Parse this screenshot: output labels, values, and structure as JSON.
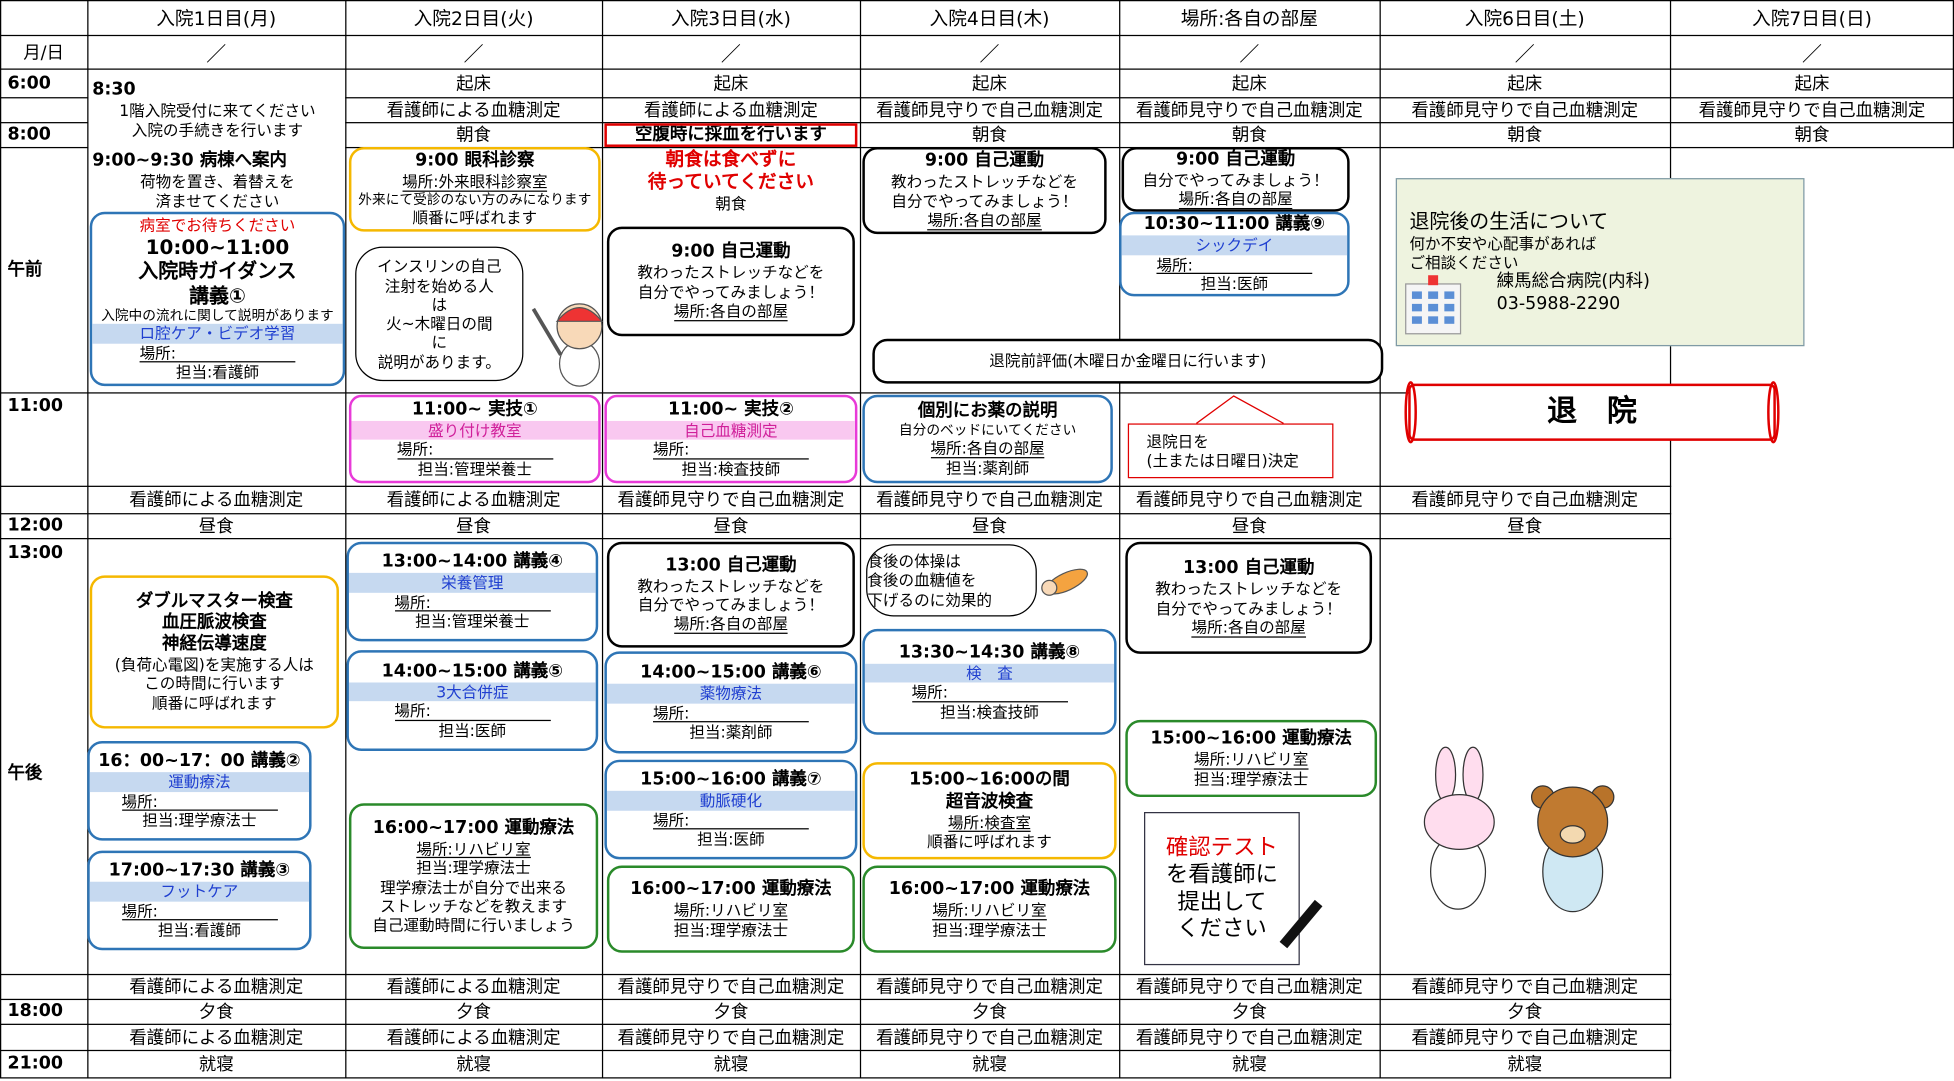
{
  "header": {
    "days": [
      "入院1日目(月)",
      "入院2日目(火)",
      "入院3日目(水)",
      "入院4日目(木)",
      "場所:各自の部屋",
      "入院6日目(土)",
      "入院7日目(日)"
    ]
  },
  "date_row": {
    "label": "月/日",
    "marks": [
      "／",
      "／",
      "／",
      "／",
      "／",
      "／",
      "／"
    ]
  },
  "time_labels": [
    "6:00",
    "8:00",
    "午前",
    "11:00",
    "12:00",
    "13:00",
    "午後",
    "18:00",
    "21:00"
  ],
  "rows": [
    {
      "cells": [
        null,
        "起床",
        "起床",
        "起床",
        "起床",
        "起床",
        "起床"
      ]
    },
    {
      "cells": [
        null,
        "看護師による血糖測定",
        "看護師による血糖測定",
        "看護師見守りで自己血糖測定",
        "看護師見守りで自己血糖測定",
        "看護師見守りで自己血糖測定",
        "看護師見守りで自己血糖測定"
      ]
    },
    {
      "cells": [
        null,
        "朝食",
        null,
        "朝食",
        "朝食",
        "朝食",
        "朝食"
      ]
    },
    {
      "cells": [
        "看護師による血糖測定",
        "看護師による血糖測定",
        "看護師見守りで自己血糖測定",
        "看護師見守りで自己血糖測定",
        "看護師見守りで自己血糖測定",
        "看護師見守りで自己血糖測定",
        null
      ]
    },
    {
      "cells": [
        "昼食",
        "昼食",
        "昼食",
        "昼食",
        "昼食",
        "昼食",
        null
      ]
    },
    {
      "cells": [
        "看護師による血糖測定",
        "看護師による血糖測定",
        "看護師見守りで自己血糖測定",
        "看護師見守りで自己血糖測定",
        "看護師見守りで自己血糖測定",
        "看護師見守りで自己血糖測定",
        null
      ]
    },
    {
      "cells": [
        "夕食",
        "夕食",
        "夕食",
        "夕食",
        "夕食",
        "夕食",
        null
      ]
    },
    {
      "cells": [
        "看護師による血糖測定",
        "看護師による血糖測定",
        "看護師見守りで自己血糖測定",
        "看護師見守りで自己血糖測定",
        "看護師見守りで自己血糖測定",
        "看護師見守りで自己血糖測定",
        null
      ]
    },
    {
      "cells": [
        "就寝",
        "就寝",
        "就寝",
        "就寝",
        "就寝",
        "就寝",
        null
      ]
    }
  ],
  "boxes": [
    {
      "lines": [
        "8:30",
        "1階入院受付に来てください",
        "入院の手続きを行います"
      ]
    },
    {
      "lines": [
        "9:00~9:30  病棟へ案内",
        "荷物を置き、着替えを",
        "済ませてください"
      ]
    },
    {
      "lines": [
        "病室でお待ちください",
        "10:00~11:00",
        "入院時ガイダンス",
        "講義①",
        "入院中の流れに関して説明があります",
        "ロ腔ケア・ビデオ学習",
        "場所:",
        "担当:看護師"
      ]
    },
    {
      "lines": [
        "9:00 眼科診察",
        "場所:外来眼科診察室",
        "外来にて受診のない方のみになります",
        "順番に呼ばれます"
      ]
    },
    {
      "lines": [
        "インスリンの自己",
        "注射を始める人",
        "は",
        "火~木曜日の間",
        "に",
        "説明があります。"
      ]
    },
    {
      "lines": [
        "空腹時に採血を行います"
      ]
    },
    {
      "lines": [
        "朝食は食べずに",
        "待っていてください",
        "朝食"
      ]
    },
    {
      "lines": [
        "9:00  自己運動",
        "教わったストレッチなどを",
        "自分でやってみましょう！",
        "場所:各自の部屋"
      ]
    },
    {
      "lines": [
        "9:00  自己運動",
        "教わったストレッチなどを",
        "自分でやってみましょう！",
        "場所:各自の部屋"
      ]
    },
    {
      "lines": [
        "9:00  自己運動",
        "自分でやってみましょう！",
        "場所:各自の部屋"
      ]
    },
    {
      "lines": [
        "10:30~11:00  講義⑨",
        "シックデイ",
        "場所:",
        "担当:医師"
      ]
    },
    {
      "lines": [
        "退院前評価(木曜日か金曜日に行います)"
      ]
    },
    {
      "lines": [
        "退院後の生活について",
        "何か不安や心配事があれば",
        "ご相談ください",
        "練馬総合病院(内科)",
        "03-5988-2290"
      ]
    },
    {
      "lines": [
        "11:00~  実技①",
        "盛り付け教室",
        "場所:",
        "担当:管理栄養士"
      ]
    },
    {
      "lines": [
        "11:00~  実技②",
        "自己血糖測定",
        "場所:",
        "担当:検査技師"
      ]
    },
    {
      "lines": [
        "個別にお薬の説明",
        "自分のベッドにいてください",
        "場所:各自の部屋",
        "担当:薬剤師"
      ]
    },
    {
      "lines": [
        "退院日を",
        "(土または日曜日)決定"
      ]
    },
    {
      "lines": [
        "退　院"
      ]
    },
    {
      "lines": [
        "ダブルマスター検査",
        "血圧脈波検査",
        "神経伝導速度",
        "(負荷心電図)を実施する人は",
        "この時間に行います",
        "順番に呼ばれます"
      ]
    },
    {
      "lines": [
        "16：00~17：00  講義②",
        "運動療法",
        "場所:",
        "担当:理学療法士"
      ]
    },
    {
      "lines": [
        "17:00~17:30  講義③",
        "フットケア",
        "場所:",
        "担当:看護師"
      ]
    },
    {
      "lines": [
        "13:00~14:00  講義④",
        "栄養管理",
        "場所:",
        "担当:管理栄養士"
      ]
    },
    {
      "lines": [
        "14:00~15:00  講義⑤",
        "3大合併症",
        "場所:",
        "担当:医師"
      ]
    },
    {
      "lines": [
        "16:00~17:00  運動療法",
        "場所:リハビリ室",
        "担当:理学療法士",
        "理学療法士が自分で出来る",
        "ストレッチなどを教えます",
        "自己運動時間に行いましょう"
      ]
    },
    {
      "lines": [
        "13:00  自己運動",
        "教わったストレッチなどを",
        "自分でやってみましょう！",
        "場所:各自の部屋"
      ]
    },
    {
      "lines": [
        "14:00~15:00  講義⑥",
        "薬物療法",
        "場所:",
        "担当:薬剤師"
      ]
    },
    {
      "lines": [
        "15:00~16:00  講義⑦",
        "動脈硬化",
        "場所:",
        "担当:医師"
      ]
    },
    {
      "lines": [
        "16:00~17:00  運動療法",
        "場所:リハビリ室",
        "担当:理学療法士"
      ]
    },
    {
      "lines": [
        "食後の体操は",
        "食後の血糖値を",
        "下げるのに効果的"
      ]
    },
    {
      "lines": [
        "13:30~14:30  講義⑧",
        "検　査",
        "場所:",
        "担当:検査技師"
      ]
    },
    {
      "lines": [
        "15:00~16:00の間",
        "超音波検査",
        "場所:検査室",
        "順番に呼ばれます"
      ]
    },
    {
      "lines": [
        "16:00~17:00  運動療法",
        "場所:リハビリ室",
        "担当:理学療法士"
      ]
    },
    {
      "lines": [
        "13:00  自己運動",
        "教わったストレッチなどを",
        "自分でやってみましょう！",
        "場所:各自の部屋"
      ]
    },
    {
      "lines": [
        "15:00~16:00  運動療法",
        "場所:リハビリ室",
        "担当:理学療法士"
      ]
    },
    {
      "lines": [
        "確認テスト",
        "を看護師に",
        "提出して",
        "ください"
      ]
    }
  ]
}
